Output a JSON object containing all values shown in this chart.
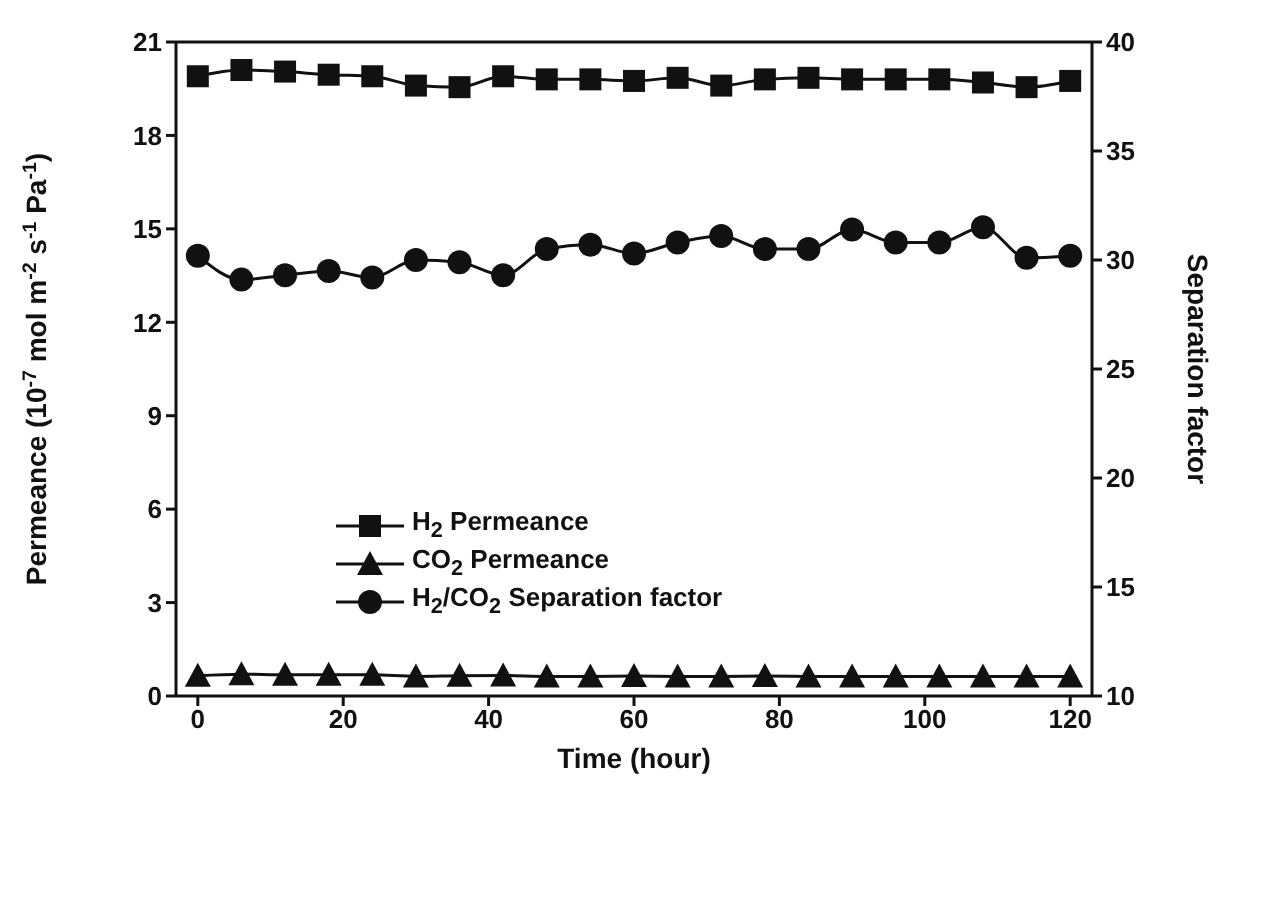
{
  "chart_data": {
    "type": "line",
    "xlabel": "Time (hour)",
    "ylabel": "Permeance (10$^{-7}$ mol m$^{-2}$ s$^{-1}$ Pa$^{-1}$)",
    "y2label": "Separation factor",
    "x": [
      0,
      6,
      12,
      18,
      24,
      30,
      36,
      42,
      48,
      54,
      60,
      66,
      72,
      78,
      84,
      90,
      96,
      102,
      108,
      114,
      120
    ],
    "series": [
      {
        "name": "H$_{2}$ Permeance",
        "color": "#111111",
        "marker": "square",
        "values": [
          19.9,
          20.1,
          20.05,
          19.95,
          19.9,
          19.6,
          19.55,
          19.9,
          19.8,
          19.8,
          19.75,
          19.85,
          19.6,
          19.8,
          19.85,
          19.8,
          19.8,
          19.8,
          19.7,
          19.55,
          19.75
        ]
      },
      {
        "name": "CO$_{2}$ Permeance",
        "color": "#111111",
        "marker": "triangle",
        "values": [
          0.65,
          0.7,
          0.68,
          0.68,
          0.68,
          0.63,
          0.65,
          0.66,
          0.63,
          0.63,
          0.64,
          0.63,
          0.63,
          0.64,
          0.63,
          0.63,
          0.63,
          0.63,
          0.63,
          0.63,
          0.63
        ]
      },
      {
        "name": "H$_{2}$/CO$_{2}$ Separation factor",
        "color": "#111111",
        "marker": "circle",
        "axis": "y2",
        "values": [
          30.2,
          29.1,
          29.3,
          29.5,
          29.2,
          30.0,
          29.9,
          29.3,
          30.5,
          30.7,
          30.3,
          30.8,
          31.1,
          30.5,
          30.5,
          31.4,
          30.8,
          30.8,
          31.5,
          30.1,
          30.2
        ]
      }
    ],
    "xlim": [
      -3,
      123
    ],
    "xticks": [
      0,
      20,
      40,
      60,
      80,
      100,
      120
    ],
    "ylim": [
      0,
      21
    ],
    "yticks": [
      0,
      3,
      6,
      9,
      12,
      15,
      18,
      21
    ],
    "y2lim": [
      10,
      40
    ],
    "y2ticks": [
      10,
      15,
      20,
      25,
      30,
      35,
      40
    ],
    "legend": "center left",
    "line_style": "solid"
  }
}
